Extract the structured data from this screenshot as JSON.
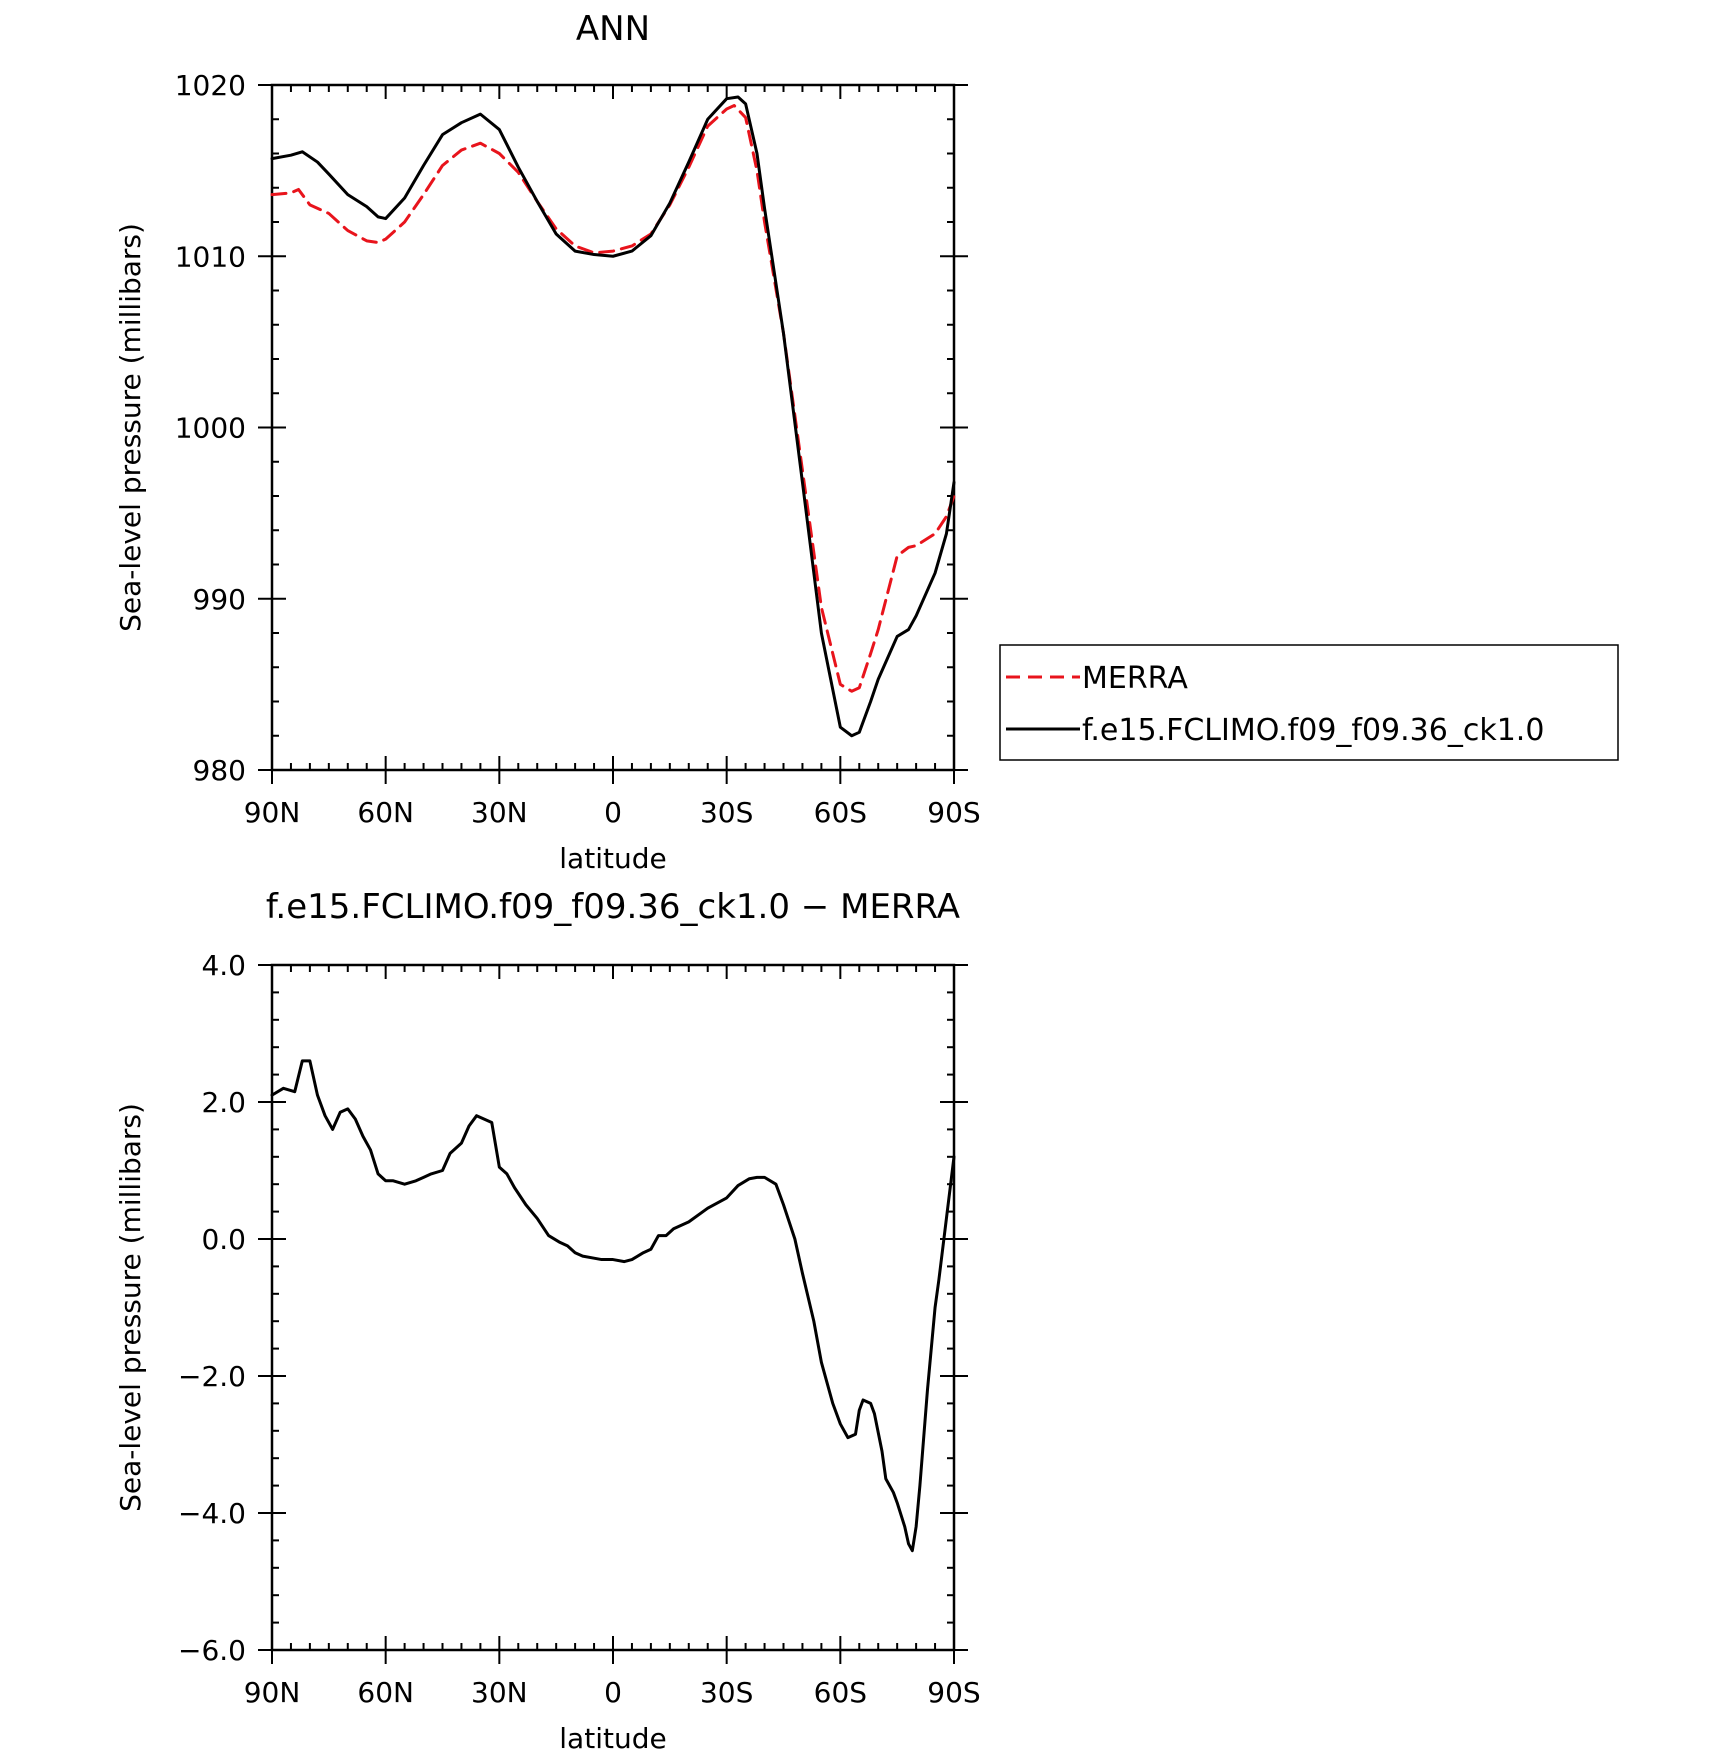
{
  "chart_data": [
    {
      "type": "line",
      "title": "ANN",
      "xlabel": "latitude",
      "ylabel": "Sea-level pressure (millibars)",
      "xlim": [
        90,
        -90
      ],
      "ylim": [
        980,
        1020
      ],
      "x_ticks": [
        {
          "value": 90,
          "label": "90N"
        },
        {
          "value": 60,
          "label": "60N"
        },
        {
          "value": 30,
          "label": "30N"
        },
        {
          "value": 0,
          "label": "0"
        },
        {
          "value": -30,
          "label": "30S"
        },
        {
          "value": -60,
          "label": "60S"
        },
        {
          "value": -90,
          "label": "90S"
        }
      ],
      "y_ticks": [
        {
          "value": 1020,
          "label": "1020"
        },
        {
          "value": 1010,
          "label": "1010"
        },
        {
          "value": 1000,
          "label": "1000"
        },
        {
          "value": 990,
          "label": "990"
        },
        {
          "value": 980,
          "label": "980"
        }
      ],
      "grid": false,
      "legend": {
        "placement": "right",
        "entries": [
          {
            "name": "MERRA",
            "color": "#e8141c",
            "style": "dashed"
          },
          {
            "name": "f.e15.FCLIMO.f09_f09.36_ck1.0",
            "color": "#000000",
            "style": "solid"
          }
        ]
      },
      "series": [
        {
          "name": "MERRA",
          "color": "#e8141c",
          "dash": true,
          "x": [
            90,
            85,
            83,
            80,
            75,
            70,
            65,
            62,
            60,
            55,
            50,
            45,
            40,
            35,
            30,
            25,
            20,
            15,
            10,
            5,
            0,
            -5,
            -10,
            -15,
            -20,
            -25,
            -30,
            -32,
            -35,
            -38,
            -40,
            -45,
            -50,
            -55,
            -60,
            -63,
            -65,
            -68,
            -70,
            -75,
            -78,
            -80,
            -85,
            -88,
            -90
          ],
          "y": [
            1013.6,
            1013.7,
            1013.9,
            1013.0,
            1012.5,
            1011.5,
            1010.9,
            1010.8,
            1011.0,
            1012.0,
            1013.6,
            1015.3,
            1016.2,
            1016.6,
            1016.0,
            1014.9,
            1013.2,
            1011.6,
            1010.6,
            1010.2,
            1010.3,
            1010.6,
            1011.3,
            1013.0,
            1015.2,
            1017.6,
            1018.6,
            1018.8,
            1018.1,
            1015.0,
            1012.0,
            1005.5,
            997.5,
            989.5,
            985.0,
            984.6,
            984.8,
            986.8,
            988.2,
            992.5,
            993.0,
            993.1,
            993.8,
            994.8,
            996.0
          ]
        },
        {
          "name": "f.e15.FCLIMO.f09_f09.36_ck1.0",
          "color": "#000000",
          "dash": false,
          "x": [
            90,
            85,
            82,
            78,
            75,
            70,
            65,
            62,
            60,
            55,
            50,
            45,
            40,
            35,
            30,
            25,
            20,
            15,
            10,
            5,
            0,
            -5,
            -10,
            -15,
            -20,
            -25,
            -30,
            -33,
            -35,
            -38,
            -40,
            -45,
            -50,
            -55,
            -60,
            -63,
            -65,
            -68,
            -70,
            -75,
            -78,
            -80,
            -85,
            -88,
            -90
          ],
          "y": [
            1015.7,
            1015.9,
            1016.1,
            1015.5,
            1014.8,
            1013.6,
            1012.9,
            1012.3,
            1012.2,
            1013.4,
            1015.3,
            1017.1,
            1017.8,
            1018.3,
            1017.4,
            1015.2,
            1013.2,
            1011.3,
            1010.3,
            1010.1,
            1010.0,
            1010.3,
            1011.2,
            1013.1,
            1015.5,
            1018.0,
            1019.2,
            1019.3,
            1018.9,
            1016.0,
            1012.8,
            1005.5,
            996.8,
            988.0,
            982.5,
            982.0,
            982.2,
            984.0,
            985.3,
            987.8,
            988.2,
            989.0,
            991.5,
            993.8,
            996.8
          ]
        }
      ]
    },
    {
      "type": "line",
      "title": "f.e15.FCLIMO.f09_f09.36_ck1.0 − MERRA",
      "xlabel": "latitude",
      "ylabel": "Sea-level pressure (millibars)",
      "xlim": [
        90,
        -90
      ],
      "ylim": [
        -6,
        4
      ],
      "x_ticks": [
        {
          "value": 90,
          "label": "90N"
        },
        {
          "value": 60,
          "label": "60N"
        },
        {
          "value": 30,
          "label": "30N"
        },
        {
          "value": 0,
          "label": "0"
        },
        {
          "value": -30,
          "label": "30S"
        },
        {
          "value": -60,
          "label": "60S"
        },
        {
          "value": -90,
          "label": "90S"
        }
      ],
      "y_ticks": [
        {
          "value": 4,
          "label": "4.0"
        },
        {
          "value": 2,
          "label": "2.0"
        },
        {
          "value": 0,
          "label": "0.0"
        },
        {
          "value": -2,
          "label": "−2.0"
        },
        {
          "value": -4,
          "label": "−4.0"
        },
        {
          "value": -6,
          "label": "−6.0"
        }
      ],
      "grid": false,
      "series": [
        {
          "name": "",
          "color": "#000000",
          "dash": false,
          "x": [
            90,
            87,
            84,
            82,
            80,
            78,
            76,
            74,
            72,
            70,
            68,
            66,
            64,
            62,
            60,
            58,
            55,
            52,
            50,
            48,
            45,
            43,
            40,
            38,
            36,
            34,
            32,
            30,
            28,
            26,
            23,
            20,
            17,
            14,
            12,
            10,
            8,
            5,
            3,
            0,
            -3,
            -5,
            -8,
            -10,
            -12,
            -14,
            -16,
            -20,
            -25,
            -30,
            -33,
            -36,
            -38,
            -40,
            -43,
            -45,
            -48,
            -50,
            -53,
            -55,
            -58,
            -60,
            -62,
            -64,
            -65,
            -66,
            -68,
            -69,
            -71,
            -72,
            -73,
            -74,
            -75,
            -77,
            -78,
            -79,
            -80,
            -81,
            -82,
            -83,
            -84,
            -85,
            -86,
            -88,
            -90
          ],
          "y": [
            2.1,
            2.2,
            2.15,
            2.6,
            2.6,
            2.1,
            1.8,
            1.6,
            1.85,
            1.9,
            1.75,
            1.5,
            1.3,
            0.95,
            0.85,
            0.85,
            0.8,
            0.85,
            0.9,
            0.95,
            1.0,
            1.25,
            1.4,
            1.65,
            1.8,
            1.75,
            1.7,
            1.05,
            0.95,
            0.75,
            0.5,
            0.3,
            0.05,
            -0.05,
            -0.1,
            -0.2,
            -0.25,
            -0.28,
            -0.3,
            -0.3,
            -0.33,
            -0.3,
            -0.2,
            -0.15,
            0.05,
            0.05,
            0.15,
            0.25,
            0.45,
            0.6,
            0.78,
            0.88,
            0.9,
            0.9,
            0.8,
            0.5,
            0.0,
            -0.5,
            -1.2,
            -1.8,
            -2.4,
            -2.7,
            -2.9,
            -2.85,
            -2.5,
            -2.35,
            -2.4,
            -2.55,
            -3.1,
            -3.5,
            -3.6,
            -3.7,
            -3.85,
            -4.2,
            -4.45,
            -4.55,
            -4.2,
            -3.6,
            -2.9,
            -2.2,
            -1.6,
            -1.0,
            -0.6,
            0.3,
            1.2
          ]
        }
      ]
    }
  ]
}
